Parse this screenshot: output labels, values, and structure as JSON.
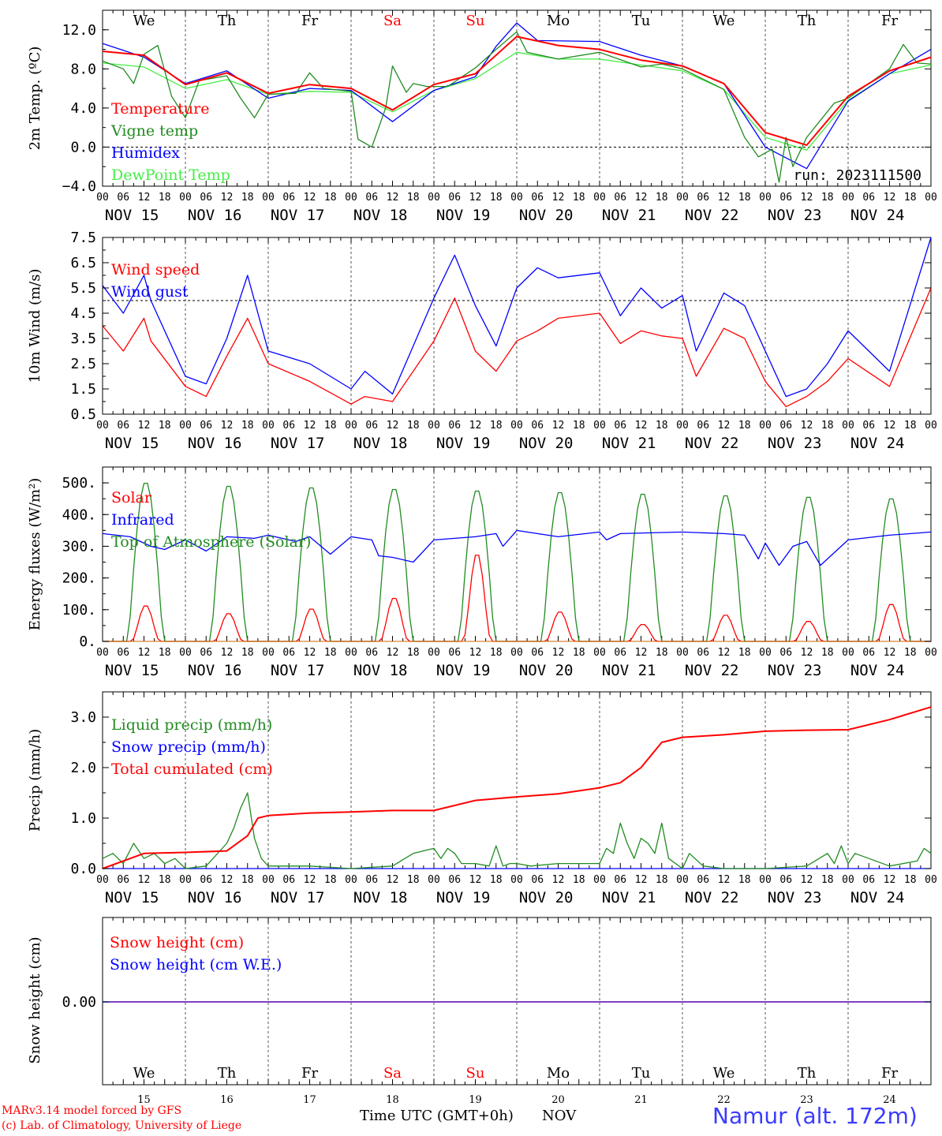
{
  "chart_data": [
    {
      "id": "temp",
      "type": "line",
      "ylabel": "2m Temp. (ºC)",
      "ylim": [
        -4.0,
        14.0
      ],
      "yticks": [
        -4.0,
        0.0,
        4.0,
        8.0,
        12.0
      ],
      "ytick_labels": [
        "−4.0",
        "0.0",
        "4.0",
        "8.0",
        "12.0"
      ],
      "ref_line": 0.0,
      "x_unit": "hours since NOV 15 00 UTC",
      "run_label": "run: 2023111500",
      "day_names": [
        "We",
        "Th",
        "Fr",
        "Sa",
        "Su",
        "Mo",
        "Tu",
        "We",
        "Th",
        "Fr"
      ],
      "series": [
        {
          "name": "Temperature",
          "color": "#ff0000",
          "x": [
            0,
            12,
            24,
            36,
            48,
            60,
            72,
            84,
            96,
            108,
            120,
            132,
            144,
            156,
            168,
            180,
            192,
            204,
            216,
            228,
            240
          ],
          "y": [
            9.8,
            9.4,
            6.4,
            7.6,
            5.5,
            6.4,
            6.0,
            3.8,
            6.4,
            7.5,
            11.3,
            10.4,
            10.0,
            8.9,
            8.3,
            6.5,
            1.5,
            0.2,
            5.2,
            7.8,
            9.2
          ]
        },
        {
          "name": "Vigne temp",
          "color": "#228b22",
          "x": [
            0,
            6,
            9,
            12,
            16,
            20,
            24,
            28,
            36,
            40,
            44,
            48,
            56,
            60,
            64,
            72,
            74,
            78,
            82,
            84,
            88,
            90,
            94,
            100,
            108,
            114,
            120,
            123,
            132,
            144,
            156,
            162,
            168,
            180,
            186,
            190,
            194,
            196,
            198,
            200,
            204,
            212,
            216,
            228,
            232,
            236,
            240
          ],
          "y": [
            8.8,
            8.0,
            6.5,
            9.5,
            10.4,
            5.2,
            3.0,
            6.8,
            7.3,
            5.0,
            3.0,
            5.4,
            5.5,
            7.6,
            6.0,
            5.7,
            0.8,
            0.0,
            4.0,
            8.3,
            5.6,
            6.5,
            6.2,
            6.2,
            8.1,
            10.0,
            11.8,
            9.7,
            9.0,
            9.7,
            8.2,
            8.5,
            8.0,
            5.9,
            1.0,
            -1.0,
            -0.2,
            -3.6,
            1.0,
            -2.0,
            1.0,
            4.5,
            5.0,
            8.0,
            10.5,
            8.6,
            8.5
          ]
        },
        {
          "name": "Humidex",
          "color": "#0000ff",
          "x": [
            0,
            12,
            24,
            36,
            48,
            60,
            72,
            84,
            96,
            108,
            114,
            120,
            126,
            144,
            156,
            168,
            180,
            192,
            204,
            216,
            228,
            240
          ],
          "y": [
            10.6,
            9.2,
            6.5,
            7.8,
            5.0,
            6.0,
            5.8,
            2.6,
            5.8,
            7.2,
            10.3,
            12.7,
            10.9,
            10.8,
            9.4,
            8.3,
            6.5,
            0.0,
            -2.2,
            4.7,
            7.5,
            10.0
          ]
        },
        {
          "name": "DewPoint Temp",
          "color": "#44ee44",
          "x": [
            0,
            12,
            24,
            36,
            48,
            60,
            72,
            84,
            96,
            108,
            120,
            132,
            144,
            156,
            168,
            180,
            192,
            204,
            216,
            228,
            240
          ],
          "y": [
            8.6,
            8.2,
            6.0,
            6.9,
            5.4,
            5.7,
            5.6,
            3.6,
            5.8,
            7.0,
            9.7,
            9.0,
            9.0,
            8.4,
            7.8,
            5.9,
            1.0,
            -0.3,
            4.8,
            7.5,
            8.4
          ]
        }
      ]
    },
    {
      "id": "wind",
      "type": "line",
      "ylabel": "10m Wind (m/s)",
      "ylim": [
        0.5,
        7.5
      ],
      "yticks": [
        0.5,
        1.5,
        2.5,
        3.5,
        4.5,
        5.5,
        6.5,
        7.5
      ],
      "ytick_labels": [
        "0.5",
        "1.5",
        "2.5",
        "3.5",
        "4.5",
        "5.5",
        "6.5",
        "7.5"
      ],
      "ref_line": 5.0,
      "series": [
        {
          "name": "Wind speed",
          "color": "#ff0000",
          "x": [
            0,
            6,
            12,
            14,
            24,
            30,
            36,
            42,
            48,
            60,
            72,
            76,
            84,
            96,
            102,
            108,
            114,
            120,
            126,
            132,
            144,
            150,
            156,
            162,
            168,
            172,
            180,
            186,
            192,
            198,
            204,
            210,
            216,
            228,
            240
          ],
          "y": [
            4.0,
            3.0,
            4.3,
            3.4,
            1.6,
            1.2,
            2.8,
            4.3,
            2.5,
            1.8,
            0.9,
            1.2,
            1.0,
            3.4,
            5.1,
            3.0,
            2.2,
            3.4,
            3.8,
            4.3,
            4.5,
            3.3,
            3.8,
            3.6,
            3.5,
            2.0,
            3.9,
            3.5,
            1.8,
            0.8,
            1.2,
            1.8,
            2.7,
            1.6,
            5.5
          ]
        },
        {
          "name": "Wind gust",
          "color": "#0000ff",
          "x": [
            0,
            6,
            12,
            14,
            24,
            30,
            36,
            42,
            48,
            60,
            72,
            76,
            84,
            96,
            102,
            108,
            114,
            120,
            126,
            132,
            144,
            150,
            156,
            162,
            168,
            172,
            180,
            186,
            192,
            198,
            204,
            210,
            216,
            228,
            240
          ],
          "y": [
            5.6,
            4.5,
            6.0,
            5.0,
            2.0,
            1.7,
            3.5,
            6.0,
            3.0,
            2.5,
            1.5,
            2.2,
            1.3,
            5.1,
            6.8,
            4.8,
            3.2,
            5.5,
            6.3,
            5.9,
            6.1,
            4.4,
            5.5,
            4.7,
            5.2,
            3.0,
            5.3,
            4.8,
            3.0,
            1.2,
            1.5,
            2.5,
            3.8,
            2.2,
            7.5
          ]
        }
      ]
    },
    {
      "id": "energy",
      "type": "line",
      "ylabel": "Energy fluxes (W/m²)",
      "ylim": [
        0,
        550
      ],
      "yticks": [
        0,
        100,
        200,
        300,
        400,
        500
      ],
      "ytick_labels": [
        "0.",
        "100.",
        "200.",
        "300.",
        "400.",
        "500."
      ],
      "series": [
        {
          "name": "Solar",
          "color": "#ff0000",
          "peaks": [
            115,
            90,
            105,
            140,
            280,
            95,
            55,
            85,
            65,
            120
          ]
        },
        {
          "name": "Infrared",
          "color": "#0000ff",
          "x": [
            0,
            8,
            14,
            18,
            24,
            30,
            36,
            44,
            48,
            56,
            60,
            66,
            72,
            78,
            80,
            84,
            90,
            96,
            108,
            114,
            116,
            120,
            132,
            144,
            146,
            150,
            168,
            180,
            186,
            190,
            192,
            196,
            200,
            204,
            208,
            216,
            228,
            240
          ],
          "y": [
            340,
            330,
            300,
            290,
            320,
            285,
            330,
            325,
            335,
            315,
            330,
            275,
            330,
            320,
            270,
            265,
            250,
            320,
            330,
            340,
            300,
            350,
            330,
            345,
            320,
            340,
            345,
            340,
            335,
            260,
            310,
            240,
            300,
            315,
            240,
            320,
            335,
            345
          ]
        },
        {
          "name": "Top of Atmosphere (Solar)",
          "color": "#228b22",
          "peaks": [
            505,
            495,
            490,
            485,
            480,
            475,
            470,
            465,
            460,
            455
          ]
        }
      ]
    },
    {
      "id": "precip",
      "type": "line",
      "ylabel": "Precip (mm/h)",
      "ylim": [
        0,
        3.5
      ],
      "yticks": [
        0.0,
        1.0,
        2.0,
        3.0
      ],
      "ytick_labels": [
        "0.0",
        "1.0",
        "2.0",
        "3.0"
      ],
      "series": [
        {
          "name": "Liquid precip (mm/h)",
          "color": "#228b22",
          "x": [
            0,
            3,
            6,
            9,
            12,
            15,
            18,
            21,
            24,
            30,
            36,
            38,
            40,
            42,
            44,
            46,
            48,
            60,
            72,
            84,
            90,
            96,
            98,
            100,
            102,
            104,
            108,
            112,
            114,
            116,
            118,
            120,
            124,
            132,
            144,
            146,
            148,
            150,
            152,
            154,
            156,
            158,
            160,
            162,
            164,
            168,
            170,
            174,
            180,
            192,
            204,
            210,
            212,
            214,
            216,
            218,
            228,
            236,
            238,
            240
          ],
          "y": [
            0.2,
            0.3,
            0.1,
            0.5,
            0.2,
            0.3,
            0.1,
            0.2,
            0.0,
            0.05,
            0.5,
            0.8,
            1.2,
            1.5,
            0.6,
            0.2,
            0.05,
            0.05,
            0.0,
            0.05,
            0.3,
            0.4,
            0.2,
            0.4,
            0.3,
            0.1,
            0.1,
            0.05,
            0.45,
            0.05,
            0.1,
            0.1,
            0.05,
            0.1,
            0.1,
            0.4,
            0.3,
            0.9,
            0.5,
            0.2,
            0.6,
            0.5,
            0.3,
            0.9,
            0.2,
            0.0,
            0.3,
            0.05,
            0.0,
            0.0,
            0.05,
            0.3,
            0.1,
            0.45,
            0.1,
            0.3,
            0.05,
            0.15,
            0.4,
            0.3
          ]
        },
        {
          "name": "Snow precip (mm/h)",
          "color": "#0000ff",
          "x": [
            0,
            240
          ],
          "y": [
            0,
            0
          ]
        },
        {
          "name": "Total cumulated (cm)",
          "color": "#ff0000",
          "x": [
            0,
            12,
            24,
            36,
            42,
            45,
            48,
            60,
            72,
            84,
            96,
            108,
            120,
            132,
            144,
            150,
            156,
            162,
            168,
            180,
            192,
            204,
            216,
            228,
            240
          ],
          "y": [
            0.0,
            0.3,
            0.32,
            0.35,
            0.65,
            1.0,
            1.05,
            1.1,
            1.12,
            1.15,
            1.15,
            1.35,
            1.42,
            1.48,
            1.6,
            1.7,
            2.0,
            2.5,
            2.6,
            2.65,
            2.72,
            2.74,
            2.75,
            2.95,
            3.2
          ]
        }
      ]
    },
    {
      "id": "snow",
      "type": "line",
      "ylabel": "Snow height (cm)",
      "ytick_labels": [
        "0.00"
      ],
      "series": [
        {
          "name": "Snow height (cm)",
          "color": "#ff0000",
          "x": [
            0,
            240
          ],
          "y": [
            0,
            0
          ]
        },
        {
          "name": "Snow height (cm W.E.)",
          "color": "#0000ff",
          "x": [
            0,
            240
          ],
          "y": [
            0,
            0
          ]
        }
      ],
      "day_names": [
        "We",
        "Th",
        "Fr",
        "Sa",
        "Su",
        "Mo",
        "Tu",
        "We",
        "Th",
        "Fr"
      ],
      "day_numbers": [
        "15",
        "16",
        "17",
        "18",
        "19",
        "20",
        "21",
        "22",
        "23",
        "24"
      ]
    }
  ],
  "axis": {
    "hour_labels": [
      "00",
      "06",
      "12",
      "18"
    ],
    "end_hour_label": "00",
    "dates": [
      "NOV 15",
      "NOV 16",
      "NOV 17",
      "NOV 18",
      "NOV 19",
      "NOV 20",
      "NOV 21",
      "NOV 22",
      "NOV 23",
      "NOV 24"
    ],
    "weekend_color": "#ff0000",
    "weekend_days": [
      3,
      4
    ]
  },
  "footer": {
    "credit_line1": "MARv3.14 model forced by GFS",
    "credit_line2": "(c) Lab. of Climatology, University of Liege",
    "xlabel": "Time UTC (GMT+0h)",
    "month": "NOV",
    "station": "Namur (alt. 172m)"
  }
}
